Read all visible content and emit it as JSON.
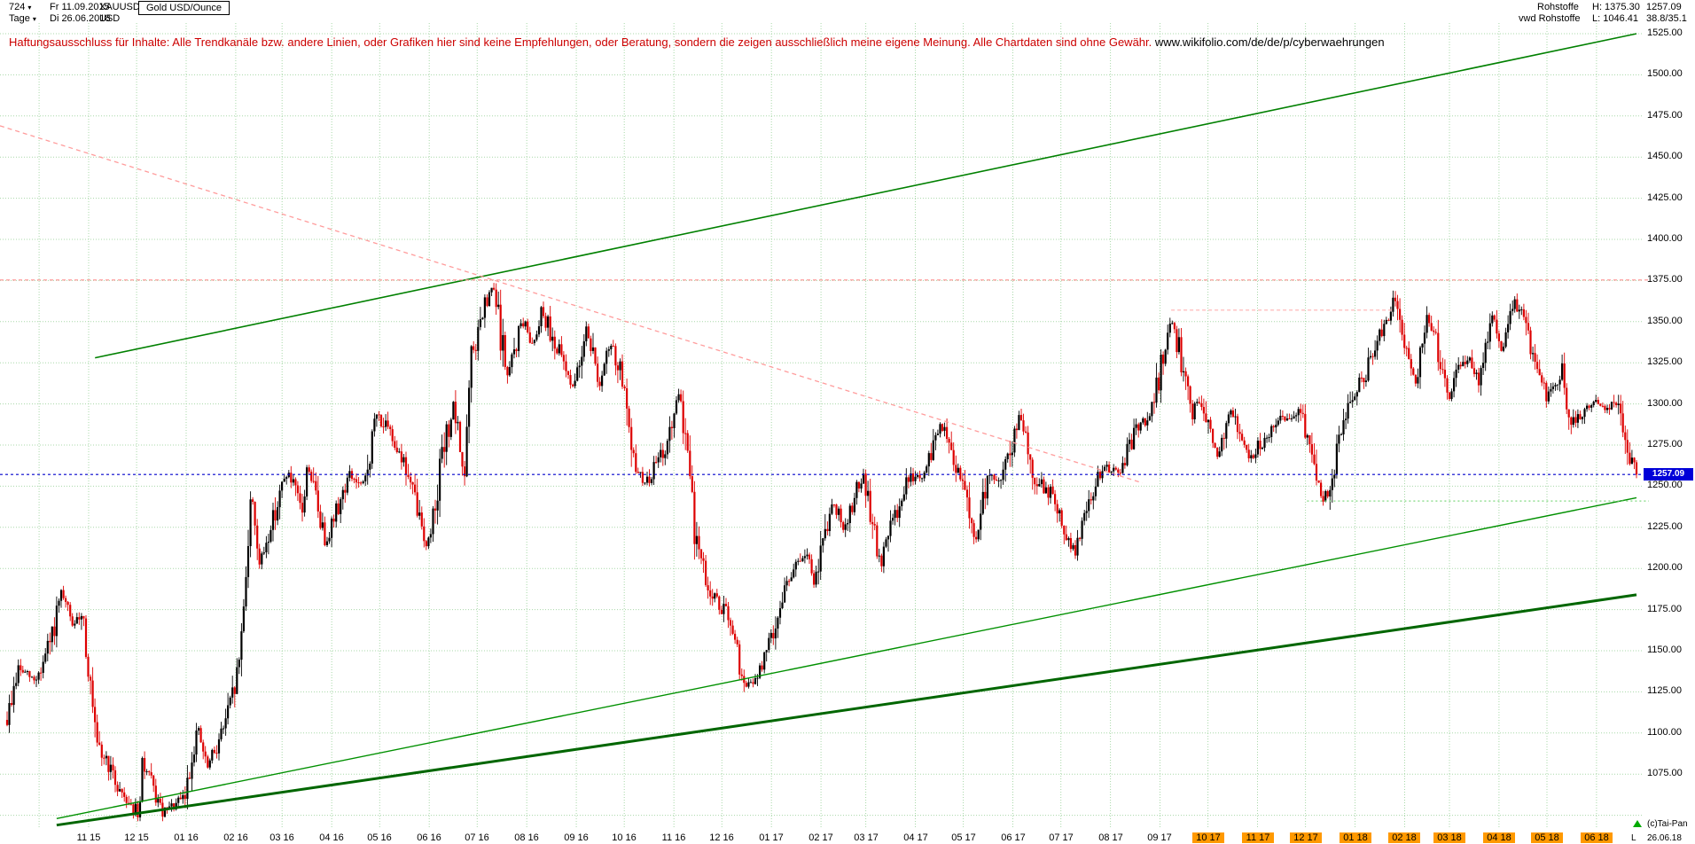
{
  "header": {
    "bar_count": "724",
    "start_day": "Fr 11.09.2015",
    "symbol": "XAUUSD",
    "instrument": "Gold USD/Ounce",
    "timeframe": "Tage",
    "end_day": "Di 26.06.2018",
    "currency": "USD",
    "group": "Rohstoffe",
    "feed": "vwd Rohstoffe",
    "high_label": "H: 1375.30",
    "low_label": "L: 1046.41",
    "last_price": "1257.09",
    "indicator_value": "38.8/35.1"
  },
  "disclaimer": {
    "text": "Haftungsausschluss für Inhalte: Alle Trendkanäle bzw. andere Linien, oder Grafiken hier sind keine Empfehlungen, oder Beratung, sondern die zeigen ausschließlich meine eigene Meinung. Alle Chartdaten sind ohne Gewähr.",
    "url": "www.wikifolio.com/de/de/p/cyberwaehrungen"
  },
  "footer": {
    "copyright": "(c)Tai-Pan",
    "low_marker": "L",
    "last_date": "26.06.18"
  },
  "price_tag": "1257.09",
  "colors": {
    "grid": "#a8d8a8",
    "up": "#000000",
    "down": "#dd0000",
    "last_price_line": "#0000cc",
    "highlight": "#ff9900",
    "disclaimer": "#cc0000"
  },
  "chart_data": {
    "type": "candlestick",
    "title": "Gold USD/Ounce (XAUUSD), Tage",
    "bars": 724,
    "date_range": [
      "2015-09-11",
      "2018-06-26"
    ],
    "visible_high": 1375.3,
    "visible_low": 1046.41,
    "last_close": 1257.09,
    "up_color": "#000000",
    "down_color": "#dd0000",
    "grid_color": "#a8d8a8",
    "y_axis": {
      "tick_step": 25,
      "ticks": [
        "1525.00",
        "1500.00",
        "1475.00",
        "1450.00",
        "1425.00",
        "1400.00",
        "1375.00",
        "1350.00",
        "1325.00",
        "1300.00",
        "1275.00",
        "1250.00",
        "1225.00",
        "1200.00",
        "1175.00",
        "1150.00",
        "1125.00",
        "1100.00",
        "1075.00"
      ]
    },
    "x_labels": [
      {
        "label": "11 15",
        "month": "2015-11",
        "hl": false
      },
      {
        "label": "12 15",
        "month": "2015-12",
        "hl": false
      },
      {
        "label": "01 16",
        "month": "2016-01",
        "hl": false
      },
      {
        "label": "02 16",
        "month": "2016-02",
        "hl": false
      },
      {
        "label": "03 16",
        "month": "2016-03",
        "hl": false
      },
      {
        "label": "04 16",
        "month": "2016-04",
        "hl": false
      },
      {
        "label": "05 16",
        "month": "2016-05",
        "hl": false
      },
      {
        "label": "06 16",
        "month": "2016-06",
        "hl": false
      },
      {
        "label": "07 16",
        "month": "2016-07",
        "hl": false
      },
      {
        "label": "08 16",
        "month": "2016-08",
        "hl": false
      },
      {
        "label": "09 16",
        "month": "2016-09",
        "hl": false
      },
      {
        "label": "10 16",
        "month": "2016-10",
        "hl": false
      },
      {
        "label": "11 16",
        "month": "2016-11",
        "hl": false
      },
      {
        "label": "12 16",
        "month": "2016-12",
        "hl": false
      },
      {
        "label": "01 17",
        "month": "2017-01",
        "hl": false
      },
      {
        "label": "02 17",
        "month": "2017-02",
        "hl": false
      },
      {
        "label": "03 17",
        "month": "2017-03",
        "hl": false
      },
      {
        "label": "04 17",
        "month": "2017-04",
        "hl": false
      },
      {
        "label": "05 17",
        "month": "2017-05",
        "hl": false
      },
      {
        "label": "06 17",
        "month": "2017-06",
        "hl": false
      },
      {
        "label": "07 17",
        "month": "2017-07",
        "hl": false
      },
      {
        "label": "08 17",
        "month": "2017-08",
        "hl": false
      },
      {
        "label": "09 17",
        "month": "2017-09",
        "hl": false
      },
      {
        "label": "10 17",
        "month": "2017-10",
        "hl": true
      },
      {
        "label": "11 17",
        "month": "2017-11",
        "hl": true
      },
      {
        "label": "12 17",
        "month": "2017-12",
        "hl": true
      },
      {
        "label": "01 18",
        "month": "2018-01",
        "hl": true
      },
      {
        "label": "02 18",
        "month": "2018-02",
        "hl": true
      },
      {
        "label": "03 18",
        "month": "2018-03",
        "hl": true
      },
      {
        "label": "04 18",
        "month": "2018-04",
        "hl": true
      },
      {
        "label": "05 18",
        "month": "2018-05",
        "hl": true
      },
      {
        "label": "06 18",
        "month": "2018-06",
        "hl": true
      }
    ],
    "price_path": [
      [
        "2015-09-11",
        1108
      ],
      [
        "2015-09-18",
        1139
      ],
      [
        "2015-09-28",
        1132
      ],
      [
        "2015-10-02",
        1138
      ],
      [
        "2015-10-09",
        1158
      ],
      [
        "2015-10-15",
        1184
      ],
      [
        "2015-10-23",
        1164
      ],
      [
        "2015-10-28",
        1176
      ],
      [
        "2015-11-06",
        1089
      ],
      [
        "2015-11-12",
        1084
      ],
      [
        "2015-11-18",
        1069
      ],
      [
        "2015-11-27",
        1057
      ],
      [
        "2015-12-03",
        1047
      ],
      [
        "2015-12-04",
        1085
      ],
      [
        "2015-12-17",
        1051
      ],
      [
        "2015-12-31",
        1060
      ],
      [
        "2016-01-08",
        1104
      ],
      [
        "2016-01-14",
        1078
      ],
      [
        "2016-01-22",
        1097
      ],
      [
        "2016-01-29",
        1118
      ],
      [
        "2016-02-03",
        1141
      ],
      [
        "2016-02-11",
        1247
      ],
      [
        "2016-02-16",
        1201
      ],
      [
        "2016-02-22",
        1223
      ],
      [
        "2016-03-04",
        1259
      ],
      [
        "2016-03-14",
        1234
      ],
      [
        "2016-03-17",
        1265
      ],
      [
        "2016-03-28",
        1216
      ],
      [
        "2016-04-12",
        1257
      ],
      [
        "2016-04-21",
        1248
      ],
      [
        "2016-04-29",
        1294
      ],
      [
        "2016-05-13",
        1273
      ],
      [
        "2016-05-20",
        1252
      ],
      [
        "2016-05-31",
        1212
      ],
      [
        "2016-06-08",
        1262
      ],
      [
        "2016-06-16",
        1298
      ],
      [
        "2016-06-23",
        1256
      ],
      [
        "2016-06-27",
        1325
      ],
      [
        "2016-07-05",
        1356
      ],
      [
        "2016-07-11",
        1371
      ],
      [
        "2016-07-20",
        1316
      ],
      [
        "2016-07-29",
        1351
      ],
      [
        "2016-08-05",
        1336
      ],
      [
        "2016-08-10",
        1358
      ],
      [
        "2016-08-24",
        1324
      ],
      [
        "2016-08-31",
        1309
      ],
      [
        "2016-09-07",
        1349
      ],
      [
        "2016-09-16",
        1310
      ],
      [
        "2016-09-22",
        1337
      ],
      [
        "2016-09-30",
        1316
      ],
      [
        "2016-10-05",
        1268
      ],
      [
        "2016-10-14",
        1251
      ],
      [
        "2016-10-28",
        1276
      ],
      [
        "2016-11-04",
        1304
      ],
      [
        "2016-11-09",
        1280
      ],
      [
        "2016-11-14",
        1221
      ],
      [
        "2016-11-23",
        1186
      ],
      [
        "2016-12-05",
        1170
      ],
      [
        "2016-12-15",
        1128
      ],
      [
        "2016-12-22",
        1131
      ],
      [
        "2016-12-30",
        1152
      ],
      [
        "2017-01-12",
        1196
      ],
      [
        "2017-01-24",
        1210
      ],
      [
        "2017-01-27",
        1188
      ],
      [
        "2017-02-08",
        1241
      ],
      [
        "2017-02-15",
        1225
      ],
      [
        "2017-02-27",
        1257
      ],
      [
        "2017-03-10",
        1201
      ],
      [
        "2017-03-15",
        1220
      ],
      [
        "2017-03-27",
        1254
      ],
      [
        "2017-04-07",
        1257
      ],
      [
        "2017-04-17",
        1290
      ],
      [
        "2017-04-25",
        1263
      ],
      [
        "2017-05-01",
        1256
      ],
      [
        "2017-05-09",
        1217
      ],
      [
        "2017-05-17",
        1260
      ],
      [
        "2017-05-24",
        1252
      ],
      [
        "2017-06-06",
        1294
      ],
      [
        "2017-06-15",
        1254
      ],
      [
        "2017-06-26",
        1244
      ],
      [
        "2017-07-03",
        1222
      ],
      [
        "2017-07-10",
        1210
      ],
      [
        "2017-07-18",
        1242
      ],
      [
        "2017-07-27",
        1260
      ],
      [
        "2017-08-08",
        1260
      ],
      [
        "2017-08-18",
        1288
      ],
      [
        "2017-08-25",
        1288
      ],
      [
        "2017-09-04",
        1334
      ],
      [
        "2017-09-08",
        1351
      ],
      [
        "2017-09-14",
        1329
      ],
      [
        "2017-09-21",
        1294
      ],
      [
        "2017-09-26",
        1302
      ],
      [
        "2017-10-06",
        1268
      ],
      [
        "2017-10-16",
        1295
      ],
      [
        "2017-10-27",
        1267
      ],
      [
        "2017-11-09",
        1284
      ],
      [
        "2017-11-17",
        1292
      ],
      [
        "2017-11-28",
        1294
      ],
      [
        "2017-12-04",
        1275
      ],
      [
        "2017-12-12",
        1238
      ],
      [
        "2017-12-20",
        1266
      ],
      [
        "2017-12-29",
        1303
      ],
      [
        "2018-01-08",
        1320
      ],
      [
        "2018-01-15",
        1340
      ],
      [
        "2018-01-25",
        1362
      ],
      [
        "2018-02-02",
        1331
      ],
      [
        "2018-02-08",
        1314
      ],
      [
        "2018-02-15",
        1353
      ],
      [
        "2018-02-23",
        1329
      ],
      [
        "2018-03-01",
        1305
      ],
      [
        "2018-03-08",
        1322
      ],
      [
        "2018-03-14",
        1325
      ],
      [
        "2018-03-20",
        1311
      ],
      [
        "2018-03-27",
        1355
      ],
      [
        "2018-04-03",
        1333
      ],
      [
        "2018-04-11",
        1360
      ],
      [
        "2018-04-19",
        1345
      ],
      [
        "2018-04-23",
        1324
      ],
      [
        "2018-05-01",
        1304
      ],
      [
        "2018-05-11",
        1320
      ],
      [
        "2018-05-15",
        1290
      ],
      [
        "2018-05-21",
        1292
      ],
      [
        "2018-05-31",
        1300
      ],
      [
        "2018-06-08",
        1299
      ],
      [
        "2018-06-14",
        1302
      ],
      [
        "2018-06-18",
        1278
      ],
      [
        "2018-06-22",
        1269
      ],
      [
        "2018-06-26",
        1257.09
      ]
    ],
    "lines": [
      {
        "name": "upper-trend-line",
        "d1": "2015-11-05",
        "p1": 1328,
        "d2": "2018-06-26",
        "p2": 1525,
        "color": "#008000",
        "width": 1.6
      },
      {
        "name": "mid-trend-line",
        "d1": "2015-10-12",
        "p1": 1048,
        "d2": "2018-06-26",
        "p2": 1243,
        "color": "#009000",
        "width": 1.4
      },
      {
        "name": "lower-trend-line",
        "d1": "2015-10-12",
        "p1": 1044,
        "d2": "2018-06-26",
        "p2": 1184,
        "color": "#006600",
        "width": 3
      },
      {
        "name": "descending-resistance",
        "d1": "2015-09-11",
        "p1": 1469,
        "d2": "2017-08-21",
        "p2": 1252,
        "color": "#ff9c9c",
        "width": 1.3,
        "dash": "5,4",
        "extend_left": true
      },
      {
        "name": "high-resistance-1375",
        "d1": "2015-09-11",
        "p1": 1375.3,
        "d2": "2018-06-26",
        "p2": 1375.3,
        "color": "#ff8f8f",
        "width": 1.2,
        "dash": "4,3",
        "extend_left": true,
        "extend_right": true
      },
      {
        "name": "resistance-1357",
        "d1": "2017-09-08",
        "p1": 1357,
        "d2": "2018-01-25",
        "p2": 1357,
        "color": "#ffb0b0",
        "width": 1.2,
        "dash": "4,3"
      },
      {
        "name": "support-1241",
        "d1": "2017-12-02",
        "p1": 1241,
        "d2": "2018-06-26",
        "p2": 1241,
        "color": "#7ed87e",
        "width": 1.2,
        "dash": "2,3",
        "extend_right": true
      },
      {
        "name": "last-price-line",
        "d1": "2015-09-11",
        "p1": 1257.09,
        "d2": "2018-06-26",
        "p2": 1257.09,
        "color": "#0000cc",
        "width": 1.2,
        "dash": "3,3",
        "extend_left": true,
        "extend_right": true
      }
    ]
  }
}
